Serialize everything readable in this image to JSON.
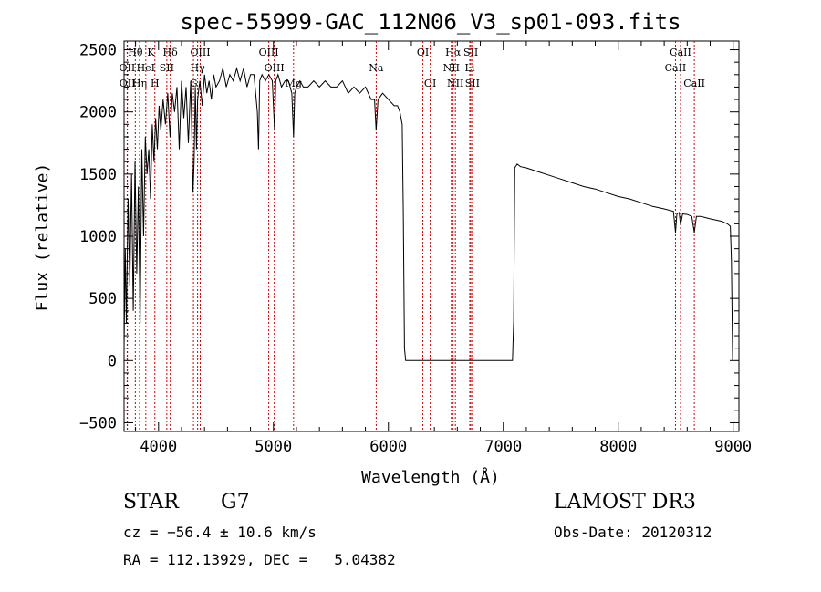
{
  "chart_data": {
    "type": "line",
    "title": "spec-55999-GAC_112N06_V3_sp01-093.fits",
    "xlabel": "Wavelength (Å)",
    "ylabel": "Flux (relative)",
    "xlim": [
      3700,
      9050
    ],
    "ylim": [
      -570,
      2570
    ],
    "xticks": [
      4000,
      5000,
      6000,
      7000,
      8000,
      9000
    ],
    "yticks": [
      -500,
      0,
      500,
      1000,
      1500,
      2000,
      2500
    ],
    "series": [
      {
        "name": "flux",
        "x": [
          3700,
          3710,
          3720,
          3735,
          3750,
          3765,
          3780,
          3795,
          3810,
          3825,
          3840,
          3855,
          3870,
          3885,
          3900,
          3915,
          3930,
          3945,
          3960,
          3975,
          3990,
          4005,
          4020,
          4040,
          4060,
          4080,
          4100,
          4120,
          4140,
          4160,
          4180,
          4200,
          4220,
          4240,
          4260,
          4280,
          4300,
          4310,
          4320,
          4330,
          4340,
          4360,
          4380,
          4400,
          4420,
          4440,
          4460,
          4480,
          4500,
          4530,
          4560,
          4590,
          4620,
          4650,
          4680,
          4710,
          4740,
          4770,
          4800,
          4830,
          4860,
          4870,
          4880,
          4900,
          4930,
          4960,
          4990,
          5010,
          5020,
          5040,
          5070,
          5100,
          5130,
          5160,
          5175,
          5185,
          5200,
          5230,
          5260,
          5300,
          5350,
          5400,
          5450,
          5500,
          5550,
          5600,
          5650,
          5700,
          5750,
          5800,
          5850,
          5880,
          5893,
          5910,
          5950,
          6000,
          6050,
          6080,
          6100,
          6110,
          6120,
          6130,
          6140,
          6150,
          6200,
          6300,
          6500,
          6700,
          6900,
          7080,
          7090,
          7100,
          7120,
          7150,
          7200,
          7300,
          7400,
          7500,
          7600,
          7700,
          7800,
          7900,
          8000,
          8100,
          8200,
          8300,
          8400,
          8480,
          8498,
          8510,
          8530,
          8542,
          8560,
          8600,
          8640,
          8662,
          8680,
          8720,
          8760,
          8800,
          8850,
          8900,
          8950,
          8975,
          8985,
          8995
        ],
        "values": [
          100,
          900,
          300,
          1300,
          600,
          1500,
          400,
          1600,
          700,
          1400,
          300,
          1700,
          1000,
          1800,
          1500,
          1700,
          1300,
          1900,
          1600,
          1950,
          1700,
          2050,
          1850,
          2100,
          1900,
          2150,
          1800,
          2150,
          2000,
          2200,
          1700,
          2250,
          1950,
          2200,
          1750,
          2250,
          1350,
          1600,
          2200,
          1700,
          2100,
          2250,
          2050,
          2300,
          2150,
          2250,
          2100,
          2300,
          2200,
          2250,
          2350,
          2200,
          2300,
          2250,
          2350,
          2250,
          2350,
          2200,
          2300,
          2300,
          2000,
          1700,
          2250,
          2300,
          2250,
          2300,
          2250,
          1850,
          2250,
          2300,
          2200,
          2250,
          2250,
          2150,
          1800,
          2150,
          2200,
          2250,
          2200,
          2200,
          2250,
          2200,
          2250,
          2200,
          2200,
          2250,
          2150,
          2200,
          2150,
          2200,
          2100,
          2100,
          1850,
          2100,
          2150,
          2100,
          2050,
          2050,
          2000,
          1950,
          1900,
          1200,
          100,
          0,
          0,
          0,
          0,
          0,
          0,
          0,
          320,
          1550,
          1580,
          1560,
          1550,
          1520,
          1490,
          1460,
          1430,
          1400,
          1380,
          1350,
          1320,
          1300,
          1270,
          1240,
          1220,
          1200,
          1030,
          1180,
          1190,
          1090,
          1180,
          1175,
          1160,
          1030,
          1160,
          1160,
          1150,
          1140,
          1130,
          1120,
          1100,
          1080,
          800,
          0
        ]
      }
    ],
    "lines": [
      {
        "name": "Hθ",
        "x": 3798,
        "row": 1
      },
      {
        "name": "OII",
        "x": 3727,
        "row": 2
      },
      {
        "name": "OII",
        "x": 3729,
        "row": 3
      },
      {
        "name": "Hη",
        "x": 3835,
        "row": 3
      },
      {
        "name": "HeI",
        "x": 3889,
        "row": 2
      },
      {
        "name": "K",
        "x": 3934,
        "row": 1
      },
      {
        "name": "H",
        "x": 3968,
        "row": 3
      },
      {
        "name": "Hδ",
        "x": 4102,
        "row": 1
      },
      {
        "name": "SII",
        "x": 4072,
        "row": 2
      },
      {
        "name": "OIII",
        "x": 4363,
        "row": 1
      },
      {
        "name": "Hγ",
        "x": 4340,
        "row": 2
      },
      {
        "name": "G",
        "x": 4304,
        "row": 3
      },
      {
        "name": "OIII",
        "x": 4959,
        "row": 1
      },
      {
        "name": "OIII",
        "x": 5007,
        "row": 2
      },
      {
        "name": "Mg",
        "x": 5175,
        "row": 3
      },
      {
        "name": "Na",
        "x": 5894,
        "row": 2
      },
      {
        "name": "OI",
        "x": 6300,
        "row": 1
      },
      {
        "name": "OI",
        "x": 6364,
        "row": 3
      },
      {
        "name": "Hα",
        "x": 6563,
        "row": 1
      },
      {
        "name": "NII",
        "x": 6548,
        "row": 2
      },
      {
        "name": "NII",
        "x": 6583,
        "row": 3
      },
      {
        "name": "SII",
        "x": 6717,
        "row": 1
      },
      {
        "name": "Li",
        "x": 6708,
        "row": 2
      },
      {
        "name": "SII",
        "x": 6731,
        "row": 3
      },
      {
        "name": "CaII",
        "x": 8542,
        "row": 1
      },
      {
        "name": "CaII",
        "x": 8498,
        "row": 2
      },
      {
        "name": "CaII",
        "x": 8662,
        "row": 3
      }
    ]
  },
  "info": {
    "object_class": "STAR",
    "subclass": "G7",
    "survey": "LAMOST DR3",
    "cz": "cz = −56.4 ± 10.6 km/s",
    "obs_date": "Obs-Date: 20120312",
    "coords": "RA = 112.13929, DEC =   5.04382"
  }
}
